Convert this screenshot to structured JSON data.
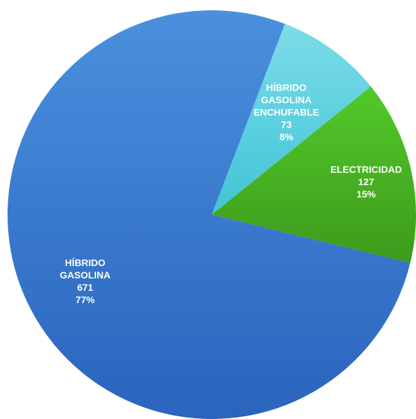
{
  "chart_data": {
    "type": "pie",
    "title": "",
    "slices": [
      {
        "label_lines": [
          "HÍBRIDO",
          "GASOLINA",
          "ENCHUFABLE"
        ],
        "value": 73,
        "percent": "8%",
        "color": "#7ddce8",
        "color_dark": "#3fc4d6"
      },
      {
        "label_lines": [
          "ELECTRICIDAD"
        ],
        "value": 127,
        "percent": "15%",
        "color": "#52c92a",
        "color_dark": "#3d9a1c"
      },
      {
        "label_lines": [
          "HÍBRIDO",
          "GASOLINA"
        ],
        "value": 671,
        "percent": "77%",
        "color": "#4a90de",
        "color_dark": "#2a64bd"
      }
    ]
  }
}
